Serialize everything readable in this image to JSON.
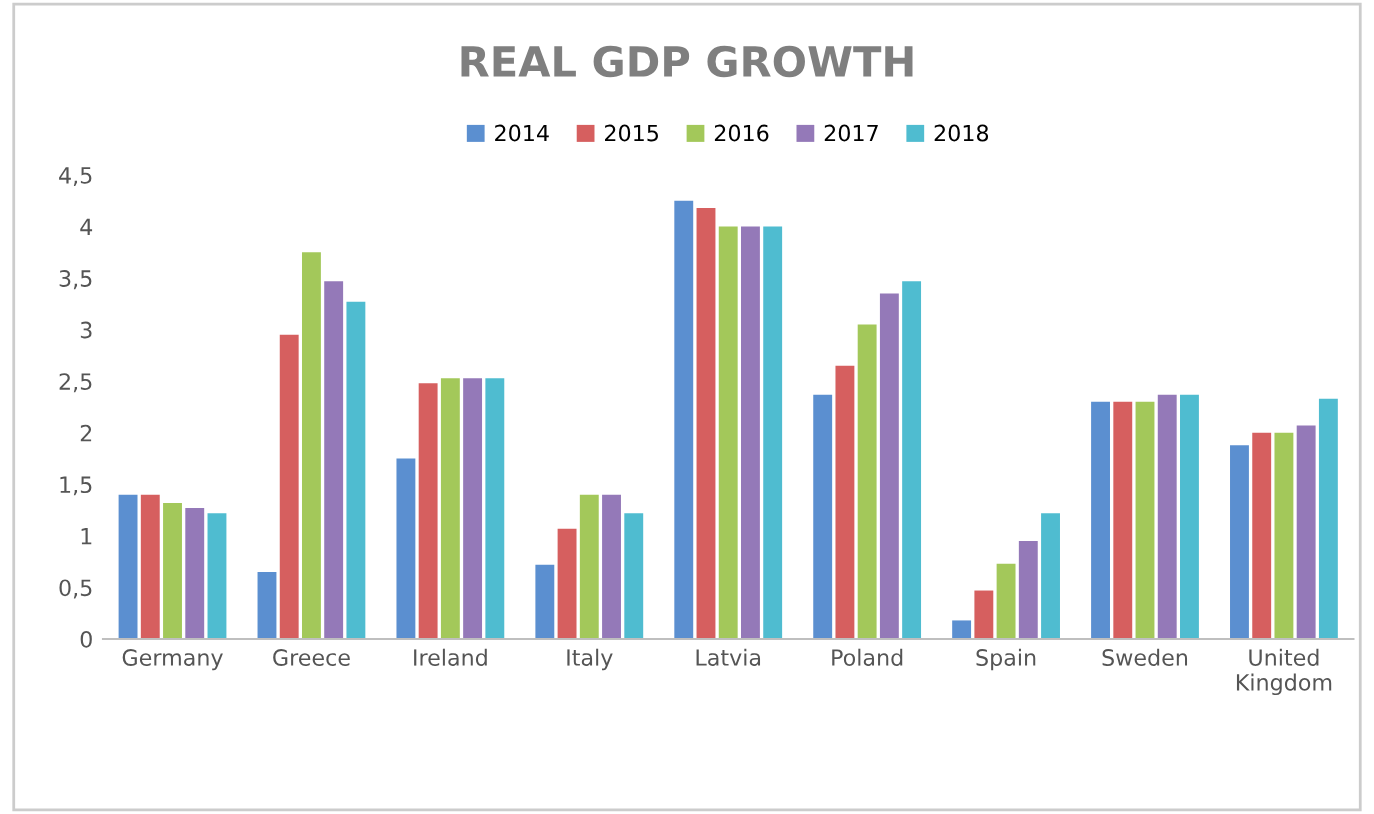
{
  "chart_data": {
    "type": "bar",
    "title": "REAL GDP GROWTH",
    "categories": [
      "Germany",
      "Greece",
      "Ireland",
      "Italy",
      "Latvia",
      "Poland",
      "Spain",
      "Sweden",
      "United\nKingdom"
    ],
    "series": [
      {
        "name": "2014",
        "color": "#5b8fd0",
        "values": [
          1.4,
          0.65,
          1.75,
          0.72,
          4.25,
          2.37,
          0.18,
          2.3,
          1.88
        ]
      },
      {
        "name": "2015",
        "color": "#d65f5f",
        "values": [
          1.4,
          2.95,
          2.48,
          1.07,
          4.18,
          2.65,
          0.47,
          2.3,
          2.0
        ]
      },
      {
        "name": "2016",
        "color": "#a3c85a",
        "values": [
          1.32,
          3.75,
          2.53,
          1.4,
          4.0,
          3.05,
          0.73,
          2.3,
          2.0
        ]
      },
      {
        "name": "2017",
        "color": "#9479b8",
        "values": [
          1.27,
          3.47,
          2.53,
          1.4,
          4.0,
          3.35,
          0.95,
          2.37,
          2.07
        ]
      },
      {
        "name": "2018",
        "color": "#4fbcd0",
        "values": [
          1.22,
          3.27,
          2.53,
          1.22,
          4.0,
          3.47,
          1.22,
          2.37,
          2.33
        ]
      }
    ],
    "ylim": [
      0,
      4.5
    ],
    "yticks": [
      0,
      {
        "value": 0.5,
        "label": "0,5"
      },
      1,
      {
        "value": 1.5,
        "label": "1,5"
      },
      2,
      {
        "value": 2.5,
        "label": "2,5"
      },
      3,
      {
        "value": 3.5,
        "label": "3,5"
      },
      4,
      {
        "value": 4.5,
        "label": "4,5"
      }
    ],
    "grid": false,
    "legend": "top"
  }
}
